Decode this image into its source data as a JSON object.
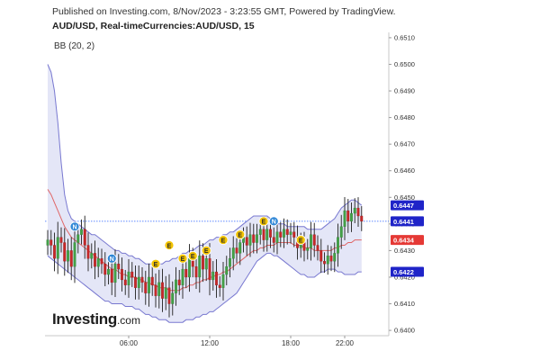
{
  "header": {
    "published": "Published on Investing.com, 8/Nov/2023 - 3:23:55 GMT, Powered by TradingView.",
    "symbol_line": "AUD/USD, Real-timeCurrencies:AUD/USD, 15",
    "indicator": "BB (20, 2)"
  },
  "logo": {
    "main": "Investing",
    "suffix": ".com"
  },
  "colors": {
    "band_fill": "#e4e6f7",
    "band_line": "#7878d0",
    "basis": "#e06666",
    "up": "#43a047",
    "down": "#c62828",
    "wick": "#333333",
    "badge_e": "#f2c300",
    "badge_n": "#2f86d6",
    "current_price_line": "#2962ff",
    "tag_blue": "#1f24c8",
    "tag_red": "#e53935"
  },
  "chart_data": {
    "type": "candlestick",
    "symbol": "AUD/USD",
    "interval": "15",
    "ylim": [
      0.6398,
      0.6512
    ],
    "y_ticks": [
      0.64,
      0.641,
      0.642,
      0.643,
      0.644,
      0.645,
      0.646,
      0.647,
      0.648,
      0.649,
      0.65,
      0.651
    ],
    "y_tick_labels": [
      "0.6400",
      "0.6410",
      "0.6420",
      "0.6430",
      "0.6440",
      "0.6450",
      "0.6460",
      "0.6470",
      "0.6480",
      "0.6490",
      "0.6500",
      "0.6510"
    ],
    "time_ticks": [
      {
        "label": "06:00",
        "bar": 24
      },
      {
        "label": "12:00",
        "bar": 48
      },
      {
        "label": "18:00",
        "bar": 72
      },
      {
        "label": "22:00",
        "bar": 88
      }
    ],
    "price_tags": [
      {
        "label": "0.6447",
        "value": 0.6447,
        "kind": "upper"
      },
      {
        "label": "0.6441",
        "value": 0.6441,
        "kind": "current"
      },
      {
        "label": "0.6434",
        "value": 0.6434,
        "kind": "basis"
      },
      {
        "label": "0.6422",
        "value": 0.6422,
        "kind": "lower"
      }
    ],
    "current_price": 0.6441,
    "close": [
      0.6434,
      0.6432,
      0.6427,
      0.6435,
      0.6433,
      0.6426,
      0.643,
      0.6424,
      0.6433,
      0.6436,
      0.6438,
      0.6432,
      0.6427,
      0.6429,
      0.6424,
      0.6427,
      0.6425,
      0.6421,
      0.6423,
      0.6418,
      0.6425,
      0.6423,
      0.6419,
      0.6417,
      0.6422,
      0.642,
      0.6416,
      0.642,
      0.6418,
      0.6414,
      0.642,
      0.6417,
      0.6413,
      0.6418,
      0.6412,
      0.6416,
      0.641,
      0.6414,
      0.6419,
      0.6417,
      0.6423,
      0.642,
      0.6427,
      0.6424,
      0.642,
      0.6428,
      0.6423,
      0.6427,
      0.6419,
      0.6422,
      0.6417,
      0.6416,
      0.6421,
      0.6424,
      0.6427,
      0.6431,
      0.6429,
      0.6433,
      0.6435,
      0.6432,
      0.6436,
      0.6433,
      0.6436,
      0.6438,
      0.6434,
      0.6438,
      0.6435,
      0.6433,
      0.6437,
      0.6435,
      0.6438,
      0.6436,
      0.6437,
      0.6435,
      0.6431,
      0.6433,
      0.643,
      0.6431,
      0.6436,
      0.6432,
      0.643,
      0.6426,
      0.6425,
      0.6428,
      0.6426,
      0.6429,
      0.6435,
      0.6439,
      0.6445,
      0.6441,
      0.6444,
      0.6446,
      0.6443,
      0.6441
    ],
    "upper_band": [
      0.65,
      0.6497,
      0.649,
      0.6478,
      0.6463,
      0.6451,
      0.6445,
      0.6442,
      0.6441,
      0.644,
      0.6439,
      0.6438,
      0.6437,
      0.6436,
      0.6436,
      0.6435,
      0.6434,
      0.6433,
      0.6432,
      0.6431,
      0.643,
      0.643,
      0.6429,
      0.6429,
      0.6428,
      0.6428,
      0.6427,
      0.6427,
      0.6426,
      0.6425,
      0.6425,
      0.6425,
      0.6425,
      0.6425,
      0.6425,
      0.6426,
      0.6426,
      0.6427,
      0.6427,
      0.6428,
      0.6429,
      0.6429,
      0.643,
      0.643,
      0.6431,
      0.6432,
      0.6432,
      0.6433,
      0.6434,
      0.6434,
      0.6435,
      0.6435,
      0.6436,
      0.6436,
      0.6437,
      0.6437,
      0.6438,
      0.6439,
      0.644,
      0.6441,
      0.6442,
      0.6443,
      0.6443,
      0.6443,
      0.6443,
      0.6443,
      0.6442,
      0.6441,
      0.644,
      0.644,
      0.644,
      0.6439,
      0.6439,
      0.6439,
      0.6439,
      0.6439,
      0.6439,
      0.6438,
      0.6438,
      0.6438,
      0.6438,
      0.6438,
      0.6439,
      0.644,
      0.6441,
      0.6442,
      0.6444,
      0.6446,
      0.6447,
      0.6448,
      0.6449,
      0.6449,
      0.6448,
      0.6447
    ],
    "basis": [
      0.6453,
      0.6451,
      0.6448,
      0.6445,
      0.6442,
      0.6439,
      0.6437,
      0.6435,
      0.6434,
      0.6433,
      0.6432,
      0.6431,
      0.643,
      0.6429,
      0.6428,
      0.6427,
      0.6426,
      0.6425,
      0.6424,
      0.6423,
      0.6423,
      0.6422,
      0.6421,
      0.6421,
      0.642,
      0.642,
      0.642,
      0.6419,
      0.6419,
      0.6418,
      0.6418,
      0.6417,
      0.6417,
      0.6416,
      0.6416,
      0.6416,
      0.6415,
      0.6415,
      0.6415,
      0.6415,
      0.6416,
      0.6416,
      0.6417,
      0.6417,
      0.6418,
      0.6418,
      0.6419,
      0.6419,
      0.642,
      0.642,
      0.6421,
      0.6421,
      0.6422,
      0.6422,
      0.6423,
      0.6424,
      0.6425,
      0.6426,
      0.6427,
      0.6428,
      0.6429,
      0.643,
      0.643,
      0.6431,
      0.6431,
      0.6432,
      0.6432,
      0.6432,
      0.6433,
      0.6433,
      0.6433,
      0.6433,
      0.6433,
      0.6432,
      0.6432,
      0.6432,
      0.6431,
      0.6431,
      0.6431,
      0.643,
      0.643,
      0.643,
      0.643,
      0.643,
      0.643,
      0.6431,
      0.6431,
      0.6432,
      0.6432,
      0.6433,
      0.6433,
      0.6434,
      0.6434,
      0.6434
    ],
    "lower_band": [
      0.6428,
      0.6427,
      0.6426,
      0.6425,
      0.6424,
      0.6423,
      0.6422,
      0.6421,
      0.642,
      0.6419,
      0.6418,
      0.6417,
      0.6416,
      0.6415,
      0.6414,
      0.6413,
      0.6412,
      0.6411,
      0.6411,
      0.641,
      0.641,
      0.641,
      0.641,
      0.6409,
      0.6409,
      0.6409,
      0.6408,
      0.6408,
      0.6407,
      0.6406,
      0.6406,
      0.6405,
      0.6405,
      0.6404,
      0.6404,
      0.6404,
      0.6403,
      0.6403,
      0.6403,
      0.6403,
      0.6403,
      0.6404,
      0.6404,
      0.6404,
      0.6405,
      0.6405,
      0.6406,
      0.6406,
      0.6407,
      0.6407,
      0.6408,
      0.6409,
      0.641,
      0.6411,
      0.6412,
      0.6413,
      0.6414,
      0.6416,
      0.6418,
      0.642,
      0.6422,
      0.6424,
      0.6426,
      0.6427,
      0.6428,
      0.6429,
      0.6429,
      0.6428,
      0.6428,
      0.6427,
      0.6426,
      0.6425,
      0.6424,
      0.6423,
      0.6422,
      0.6421,
      0.6421,
      0.642,
      0.642,
      0.642,
      0.6421,
      0.6422,
      0.6422,
      0.6423,
      0.6423,
      0.6423,
      0.6422,
      0.6422,
      0.6421,
      0.6421,
      0.6421,
      0.6421,
      0.6422,
      0.6422
    ],
    "events": [
      {
        "label": "N",
        "bar": 8,
        "price": 0.6439
      },
      {
        "label": "N",
        "bar": 19,
        "price": 0.6427
      },
      {
        "label": "E",
        "bar": 32,
        "price": 0.6425
      },
      {
        "label": "E",
        "bar": 36,
        "price": 0.6432
      },
      {
        "label": "E",
        "bar": 40,
        "price": 0.6427
      },
      {
        "label": "E",
        "bar": 43,
        "price": 0.6428
      },
      {
        "label": "E",
        "bar": 47,
        "price": 0.643
      },
      {
        "label": "E",
        "bar": 52,
        "price": 0.6434
      },
      {
        "label": "E",
        "bar": 57,
        "price": 0.6436
      },
      {
        "label": "E",
        "bar": 64,
        "price": 0.6441
      },
      {
        "label": "N",
        "bar": 67,
        "price": 0.6441
      },
      {
        "label": "E",
        "bar": 75,
        "price": 0.6434
      }
    ]
  }
}
